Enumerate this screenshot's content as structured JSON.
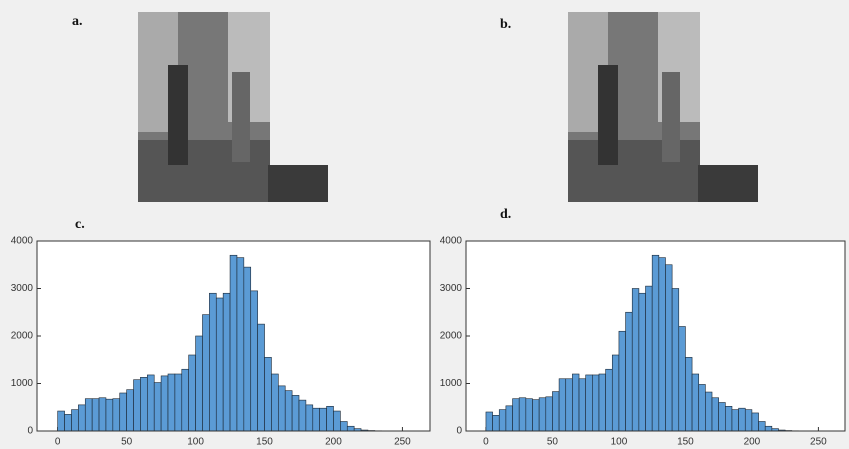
{
  "panels": [
    {
      "label": "a."
    },
    {
      "label": "b."
    }
  ],
  "chart_data": [
    {
      "type": "histogram",
      "title": "c.",
      "color": "#5b9bd5",
      "edgecolor": "#1a2633",
      "grid": false,
      "bins": [
        0,
        5,
        10,
        15,
        20,
        25,
        30,
        35,
        40,
        45,
        50,
        55,
        60,
        65,
        70,
        75,
        80,
        85,
        90,
        95,
        100,
        105,
        110,
        115,
        120,
        125,
        130,
        135,
        140,
        145,
        150,
        155,
        160,
        165,
        170,
        175,
        180,
        185,
        190,
        195,
        200,
        205,
        210,
        215,
        220,
        225,
        230,
        235,
        240,
        245,
        250,
        255
      ],
      "values": [
        420,
        350,
        450,
        550,
        680,
        680,
        700,
        670,
        680,
        800,
        870,
        1080,
        1130,
        1180,
        1020,
        1160,
        1200,
        1200,
        1300,
        1600,
        2000,
        2450,
        2900,
        2800,
        2900,
        3700,
        3650,
        3450,
        2950,
        2250,
        1550,
        1200,
        950,
        850,
        750,
        650,
        550,
        480,
        480,
        520,
        420,
        200,
        100,
        50,
        20,
        10,
        5,
        0,
        0,
        0,
        0
      ],
      "xlim": [
        -15,
        270
      ],
      "xticks": [
        0,
        50,
        100,
        150,
        200,
        250
      ],
      "ylim": [
        0,
        4000
      ],
      "yticks": [
        0,
        1000,
        2000,
        3000,
        4000
      ]
    },
    {
      "type": "histogram",
      "title": "d.",
      "color": "#5b9bd5",
      "edgecolor": "#1a2633",
      "grid": false,
      "bins": [
        0,
        5,
        10,
        15,
        20,
        25,
        30,
        35,
        40,
        45,
        50,
        55,
        60,
        65,
        70,
        75,
        80,
        85,
        90,
        95,
        100,
        105,
        110,
        115,
        120,
        125,
        130,
        135,
        140,
        145,
        150,
        155,
        160,
        165,
        170,
        175,
        180,
        185,
        190,
        195,
        200,
        205,
        210,
        215,
        220,
        225,
        230,
        235,
        240,
        245,
        250,
        255
      ],
      "values": [
        400,
        330,
        450,
        530,
        680,
        700,
        680,
        660,
        700,
        720,
        830,
        1100,
        1100,
        1200,
        1100,
        1180,
        1180,
        1200,
        1300,
        1600,
        2100,
        2500,
        3000,
        2900,
        3050,
        3700,
        3650,
        3500,
        3000,
        2200,
        1550,
        1200,
        980,
        820,
        700,
        600,
        520,
        450,
        480,
        450,
        380,
        200,
        100,
        50,
        20,
        10,
        5,
        0,
        0,
        0,
        0
      ],
      "xlim": [
        -15,
        270
      ],
      "xticks": [
        0,
        50,
        100,
        150,
        200,
        250
      ],
      "ylim": [
        0,
        4000
      ],
      "yticks": [
        0,
        1000,
        2000,
        3000,
        4000
      ]
    }
  ]
}
